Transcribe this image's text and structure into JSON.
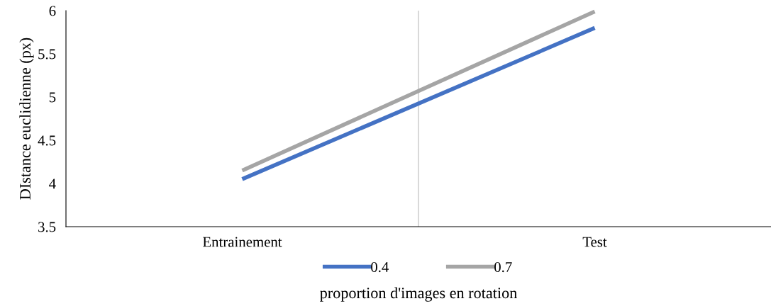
{
  "chart_data": {
    "type": "line",
    "xlabel": "proportion d'images en rotation",
    "ylabel": "DIstance euclidienne (px)",
    "categories": [
      "Entrainement",
      "Test"
    ],
    "series": [
      {
        "name": "0.4",
        "color": "#4472c4",
        "values": [
          4.05,
          5.8
        ]
      },
      {
        "name": "0.7",
        "color": "#a5a5a5",
        "values": [
          4.15,
          5.99
        ]
      }
    ],
    "ylim": [
      3.5,
      6
    ],
    "yticks": [
      3.5,
      4,
      4.5,
      5,
      5.5,
      6
    ],
    "grid": "x",
    "legend": "bottom",
    "marker": "none",
    "line_style": "solid"
  }
}
